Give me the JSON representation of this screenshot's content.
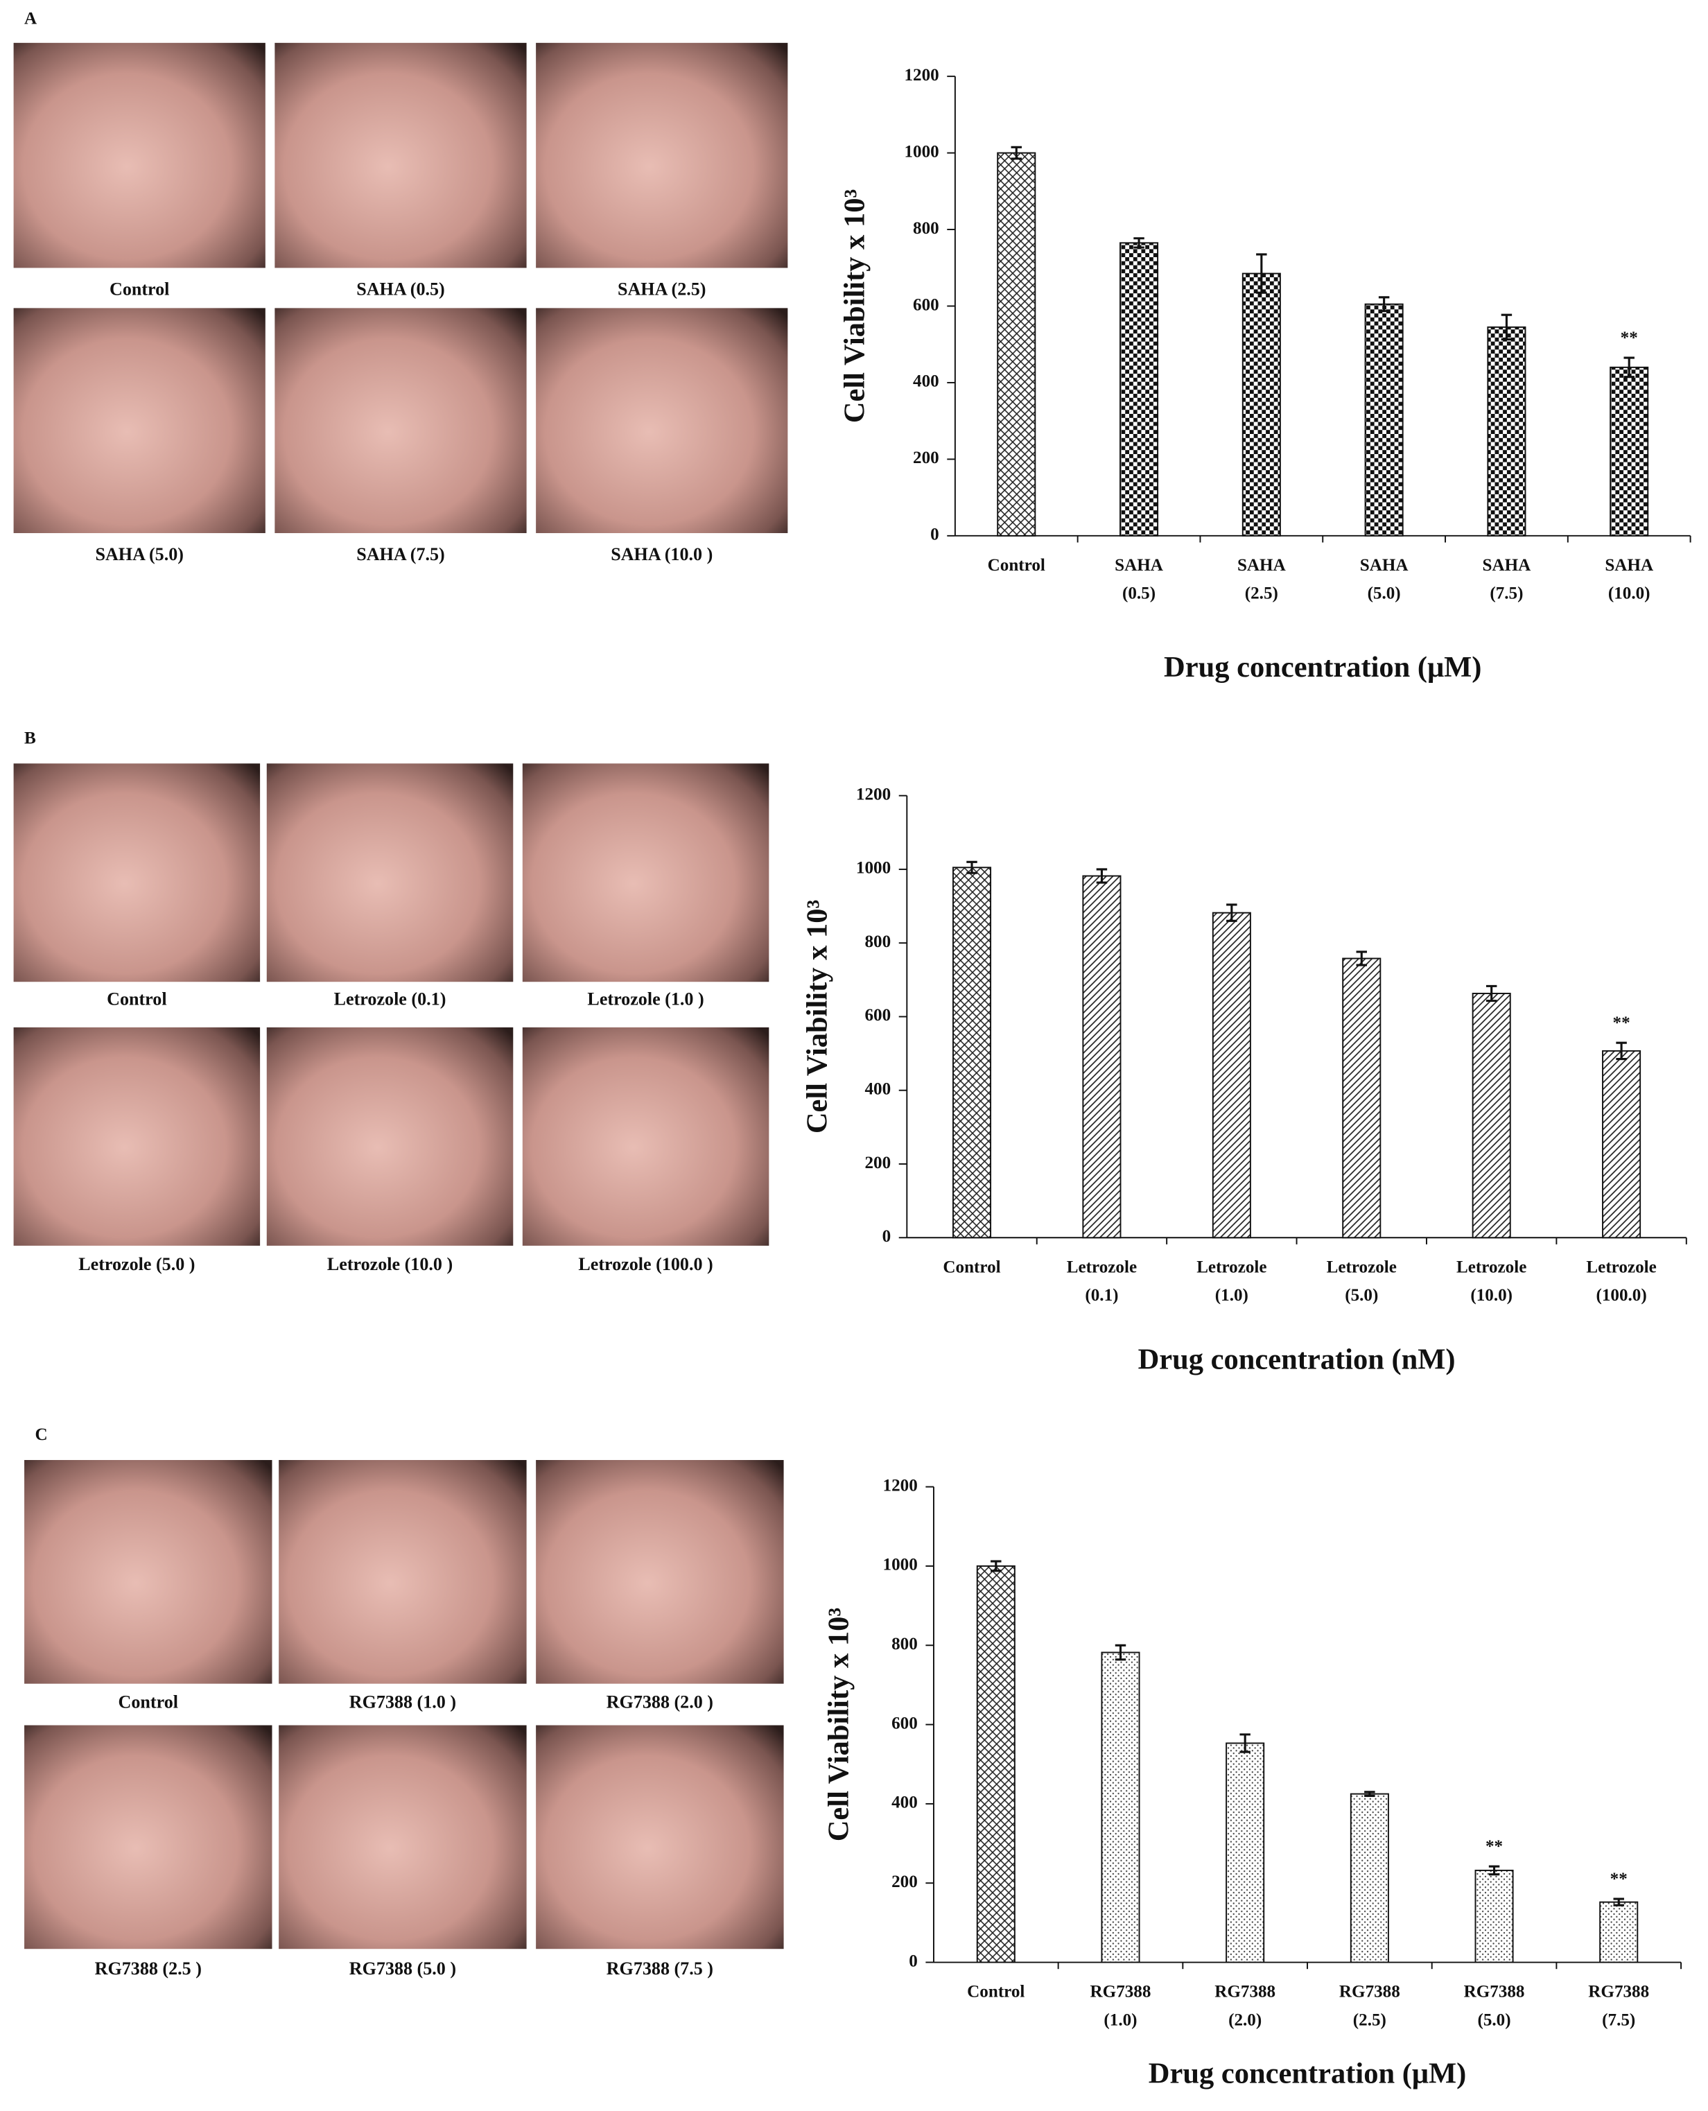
{
  "chart_data": [
    {
      "type": "bar",
      "panel": "A",
      "image_labels": [
        "Control",
        "SAHA  (0.5)",
        "SAHA  (2.5)",
        "SAHA  (5.0)",
        "SAHA  (7.5)",
        "SAHA  (10.0 )"
      ],
      "categories": [
        [
          "Control"
        ],
        [
          "SAHA",
          "(0.5)"
        ],
        [
          "SAHA",
          "(2.5)"
        ],
        [
          "SAHA",
          "(5.0)"
        ],
        [
          "SAHA",
          "(7.5)"
        ],
        [
          "SAHA",
          "(10.0)"
        ]
      ],
      "values": [
        1000,
        765,
        685,
        605,
        545,
        440
      ],
      "errors": [
        15,
        12,
        50,
        18,
        32,
        25
      ],
      "annotations": [
        {
          "index": 5,
          "text": "**"
        }
      ],
      "ylim": [
        0,
        1200
      ],
      "yticks": [
        0,
        200,
        400,
        600,
        800,
        1000,
        1200
      ],
      "y_label": "Cell Viability  x 10³",
      "x_label": "Drug concentration (μM)",
      "control_pattern": "crosshatch",
      "pattern": "checker"
    },
    {
      "type": "bar",
      "panel": "B",
      "image_labels": [
        "Control",
        "Letrozole (0.1)",
        "Letrozole (1.0 )",
        "Letrozole (5.0 )",
        "Letrozole (10.0 )",
        "Letrozole (100.0 )"
      ],
      "categories": [
        [
          "Control"
        ],
        [
          "Letrozole",
          "(0.1)"
        ],
        [
          "Letrozole",
          "(1.0)"
        ],
        [
          "Letrozole",
          "(5.0)"
        ],
        [
          "Letrozole",
          "(10.0)"
        ],
        [
          "Letrozole",
          "(100.0)"
        ]
      ],
      "values": [
        1005,
        982,
        882,
        758,
        663,
        507
      ],
      "errors": [
        15,
        18,
        22,
        18,
        20,
        22
      ],
      "annotations": [
        {
          "index": 5,
          "text": "**"
        }
      ],
      "ylim": [
        0,
        1200
      ],
      "yticks": [
        0,
        200,
        400,
        600,
        800,
        1000,
        1200
      ],
      "y_label": "Cell Viability  x 10³",
      "x_label": "Drug concentration (nM)",
      "control_pattern": "crosshatch",
      "pattern": "diagonal"
    },
    {
      "type": "bar",
      "panel": "C",
      "image_labels": [
        "Control",
        "RG7388  (1.0 )",
        "RG7388  (2.0 )",
        "RG7388  (2.5 )",
        "RG7388  (5.0 )",
        "RG7388  (7.5 )"
      ],
      "categories": [
        [
          "Control"
        ],
        [
          "RG7388",
          "(1.0)"
        ],
        [
          "RG7388",
          "(2.0)"
        ],
        [
          "RG7388",
          "(2.5)"
        ],
        [
          "RG7388",
          "(5.0)"
        ],
        [
          "RG7388",
          "(7.5)"
        ]
      ],
      "values": [
        1000,
        782,
        553,
        425,
        232,
        152
      ],
      "errors": [
        12,
        18,
        22,
        5,
        10,
        8
      ],
      "annotations": [
        {
          "index": 4,
          "text": "**"
        },
        {
          "index": 5,
          "text": "**"
        }
      ],
      "ylim": [
        0,
        1200
      ],
      "yticks": [
        0,
        200,
        400,
        600,
        800,
        1000,
        1200
      ],
      "y_label": "Cell Viability  x 10³",
      "x_label": "Drug concentration  (μM)",
      "control_pattern": "crosshatch",
      "pattern": "dots"
    }
  ]
}
